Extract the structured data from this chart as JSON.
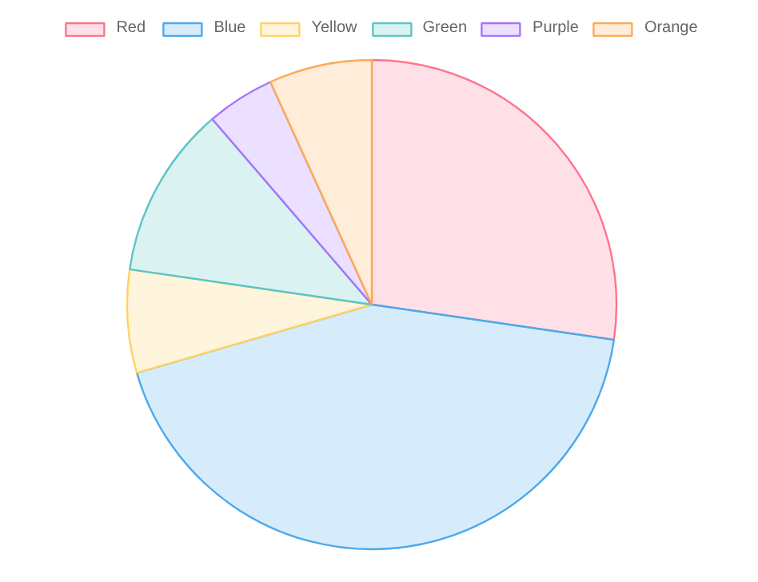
{
  "chart_data": {
    "type": "pie",
    "categories": [
      "Red",
      "Blue",
      "Yellow",
      "Green",
      "Purple",
      "Orange"
    ],
    "values": [
      27.3,
      43.2,
      6.8,
      11.4,
      4.5,
      6.8
    ],
    "colors": [
      "#ffe0e6",
      "#d7ecfb",
      "#fff5dd",
      "#dbf2f2",
      "#ebe0ff",
      "#ffecd9"
    ],
    "legend": "top"
  }
}
